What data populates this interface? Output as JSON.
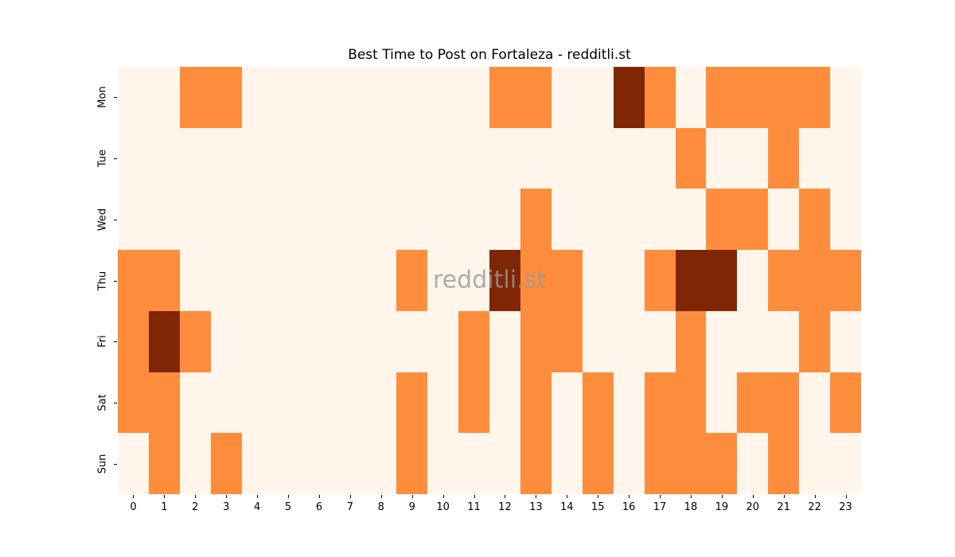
{
  "title": "Best Time to Post on Fortaleza - redditli.st",
  "watermark": "redditli.st",
  "chart_data": {
    "type": "heatmap",
    "title": "Best Time to Post on Fortaleza - redditli.st",
    "xlabel": "",
    "ylabel": "",
    "x_labels": [
      "0",
      "1",
      "2",
      "3",
      "4",
      "5",
      "6",
      "7",
      "8",
      "9",
      "10",
      "11",
      "12",
      "13",
      "14",
      "15",
      "16",
      "17",
      "18",
      "19",
      "20",
      "21",
      "22",
      "23"
    ],
    "y_labels": [
      "Mon",
      "Tue",
      "Wed",
      "Thu",
      "Fri",
      "Sat",
      "Sun"
    ],
    "values": [
      [
        0,
        0,
        1,
        1,
        0,
        0,
        0,
        0,
        0,
        0,
        0,
        0,
        1,
        1,
        0,
        0,
        2,
        1,
        0,
        1,
        1,
        1,
        1,
        0
      ],
      [
        0,
        0,
        0,
        0,
        0,
        0,
        0,
        0,
        0,
        0,
        0,
        0,
        0,
        0,
        0,
        0,
        0,
        0,
        1,
        0,
        0,
        1,
        0,
        0
      ],
      [
        0,
        0,
        0,
        0,
        0,
        0,
        0,
        0,
        0,
        0,
        0,
        0,
        0,
        1,
        0,
        0,
        0,
        0,
        0,
        1,
        1,
        0,
        1,
        0
      ],
      [
        1,
        1,
        0,
        0,
        0,
        0,
        0,
        0,
        0,
        1,
        0,
        0,
        2,
        1,
        1,
        0,
        0,
        1,
        2,
        2,
        0,
        1,
        1,
        1
      ],
      [
        1,
        2,
        1,
        0,
        0,
        0,
        0,
        0,
        0,
        0,
        0,
        1,
        0,
        1,
        1,
        0,
        0,
        0,
        1,
        0,
        0,
        0,
        1,
        0
      ],
      [
        1,
        1,
        0,
        0,
        0,
        0,
        0,
        0,
        0,
        1,
        0,
        1,
        0,
        1,
        0,
        1,
        0,
        1,
        1,
        0,
        1,
        1,
        0,
        1
      ],
      [
        0,
        1,
        0,
        1,
        0,
        0,
        0,
        0,
        0,
        1,
        0,
        0,
        0,
        1,
        0,
        1,
        0,
        1,
        1,
        1,
        0,
        1,
        0,
        0
      ]
    ],
    "value_range": [
      0,
      2
    ],
    "value_colors": {
      "0": "#fff5eb",
      "1": "#fd8d3c",
      "2": "#7f2704"
    },
    "colormap": "Oranges",
    "grid": false,
    "legend": "none"
  }
}
